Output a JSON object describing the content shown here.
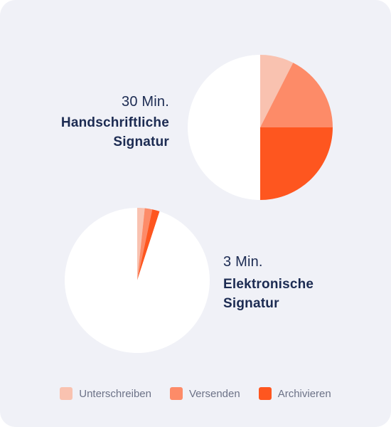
{
  "chart_data": [
    {
      "type": "pie",
      "title": "Handschriftliche Signatur",
      "subtitle": "30 Min.",
      "slices": [
        {
          "category": "Unterschreiben",
          "value": 4.5
        },
        {
          "category": "Versenden",
          "value": 10.5
        },
        {
          "category": "Archivieren",
          "value": 15
        },
        {
          "category": "",
          "value": 30
        }
      ]
    },
    {
      "type": "pie",
      "title": "Elektronische Signatur",
      "subtitle": "3 Min.",
      "slices": [
        {
          "category": "Unterschreiben",
          "value": 1
        },
        {
          "category": "Versenden",
          "value": 1
        },
        {
          "category": "Archivieren",
          "value": 1
        },
        {
          "category": "",
          "value": 57
        }
      ]
    }
  ],
  "legend": {
    "position": "bottom",
    "items": [
      {
        "label": "Unterschreiben",
        "color": "#f9c2b0"
      },
      {
        "label": "Versenden",
        "color": "#fd8b68"
      },
      {
        "label": "Archivieren",
        "color": "#fe561f"
      }
    ]
  },
  "colors": {
    "remainder": "#ffffff",
    "text": "#1c2b52",
    "legend_text": "#6c7287",
    "background": "#f0f1f7"
  }
}
